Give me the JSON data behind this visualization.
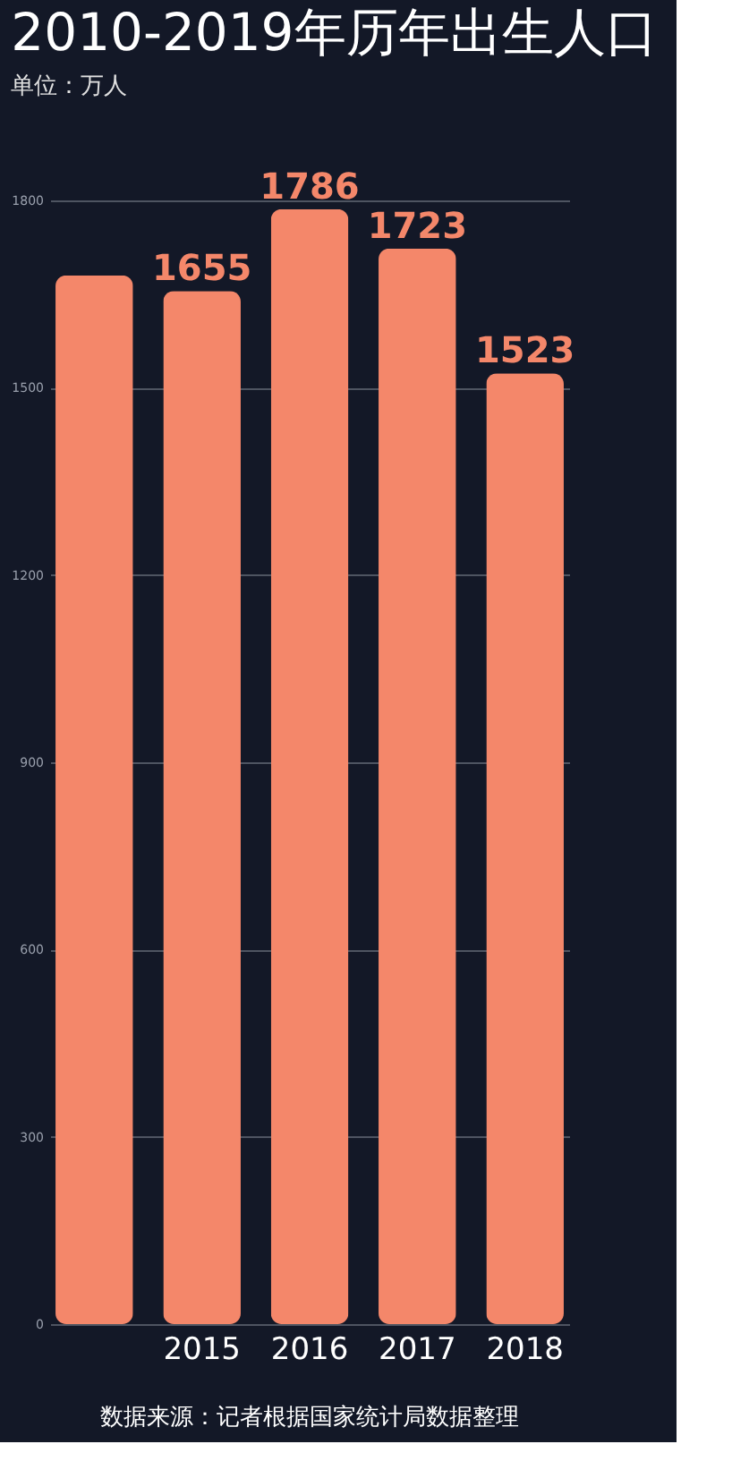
{
  "chart_data": {
    "type": "bar",
    "title": "2010-2019年历年出生人口",
    "subtitle": "单位：万人",
    "categories": [
      null,
      "2015",
      "2016",
      "2017",
      "2018"
    ],
    "values": [
      1680,
      1655,
      1786,
      1723,
      1523
    ],
    "value_labels": [
      null,
      "1655",
      "1786",
      "1723",
      "1523"
    ],
    "color": "#f4876a",
    "ylim": [
      0,
      1800
    ],
    "yticks": [
      0,
      300,
      600,
      900,
      1200,
      1500,
      1800
    ],
    "grid": "y",
    "annotations": [
      "数据来源：记者根据国家统计局数据整理"
    ]
  }
}
